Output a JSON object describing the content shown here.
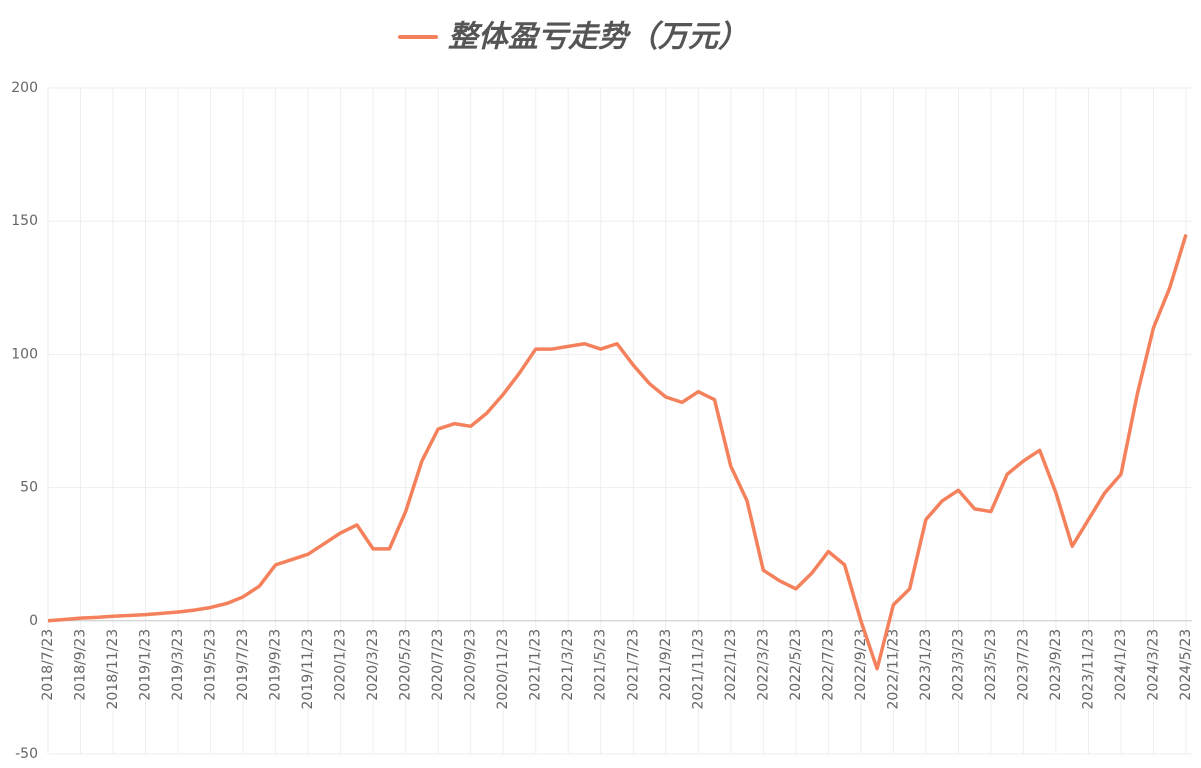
{
  "chart_data": {
    "type": "line",
    "series": [
      {
        "name": "整体盈亏走势（万元）",
        "color": "#f4815c",
        "values": [
          0,
          0.5,
          1,
          1.3,
          1.7,
          2,
          2.3,
          2.8,
          3.3,
          4,
          5,
          6.5,
          9,
          13,
          21,
          23,
          25,
          29,
          33,
          36,
          27,
          27,
          41,
          60,
          72,
          74,
          73,
          78,
          85,
          93,
          102,
          102,
          103,
          104,
          102,
          104,
          96,
          89,
          84,
          82,
          86,
          83,
          58,
          45,
          19,
          15,
          12,
          18,
          26,
          21,
          0,
          -18,
          6,
          12,
          38,
          45,
          49,
          42,
          41,
          55,
          60,
          64,
          48,
          28,
          38,
          48,
          55,
          85,
          110,
          125,
          145
        ]
      }
    ],
    "categories": [
      "2018/7/23",
      null,
      "2018/9/23",
      null,
      "2018/11/23",
      null,
      "2019/1/23",
      null,
      "2019/3/23",
      null,
      "2019/5/23",
      null,
      "2019/7/23",
      null,
      "2019/9/23",
      null,
      "2019/11/23",
      null,
      "2020/1/23",
      null,
      "2020/3/23",
      null,
      "2020/5/23",
      null,
      "2020/7/23",
      null,
      "2020/9/23",
      null,
      "2020/11/23",
      null,
      "2021/1/23",
      null,
      "2021/3/23",
      null,
      "2021/5/23",
      null,
      "2021/7/23",
      null,
      "2021/9/23",
      null,
      "2021/11/23",
      null,
      "2022/1/23",
      null,
      "2022/3/23",
      null,
      "2022/5/23",
      null,
      "2022/7/23",
      null,
      "2022/9/23",
      null,
      "2022/11/23",
      null,
      "2023/1/23",
      null,
      "2023/3/23",
      null,
      "2023/5/23",
      null,
      "2023/7/23",
      null,
      "2023/9/23",
      null,
      "2023/11/23",
      null,
      "2024/1/23",
      null,
      "2024/3/23",
      null,
      "2024/5/23"
    ],
    "ylim": [
      -50,
      200
    ],
    "yticks": [
      -50,
      0,
      50,
      100,
      150,
      200
    ],
    "grid": true
  }
}
